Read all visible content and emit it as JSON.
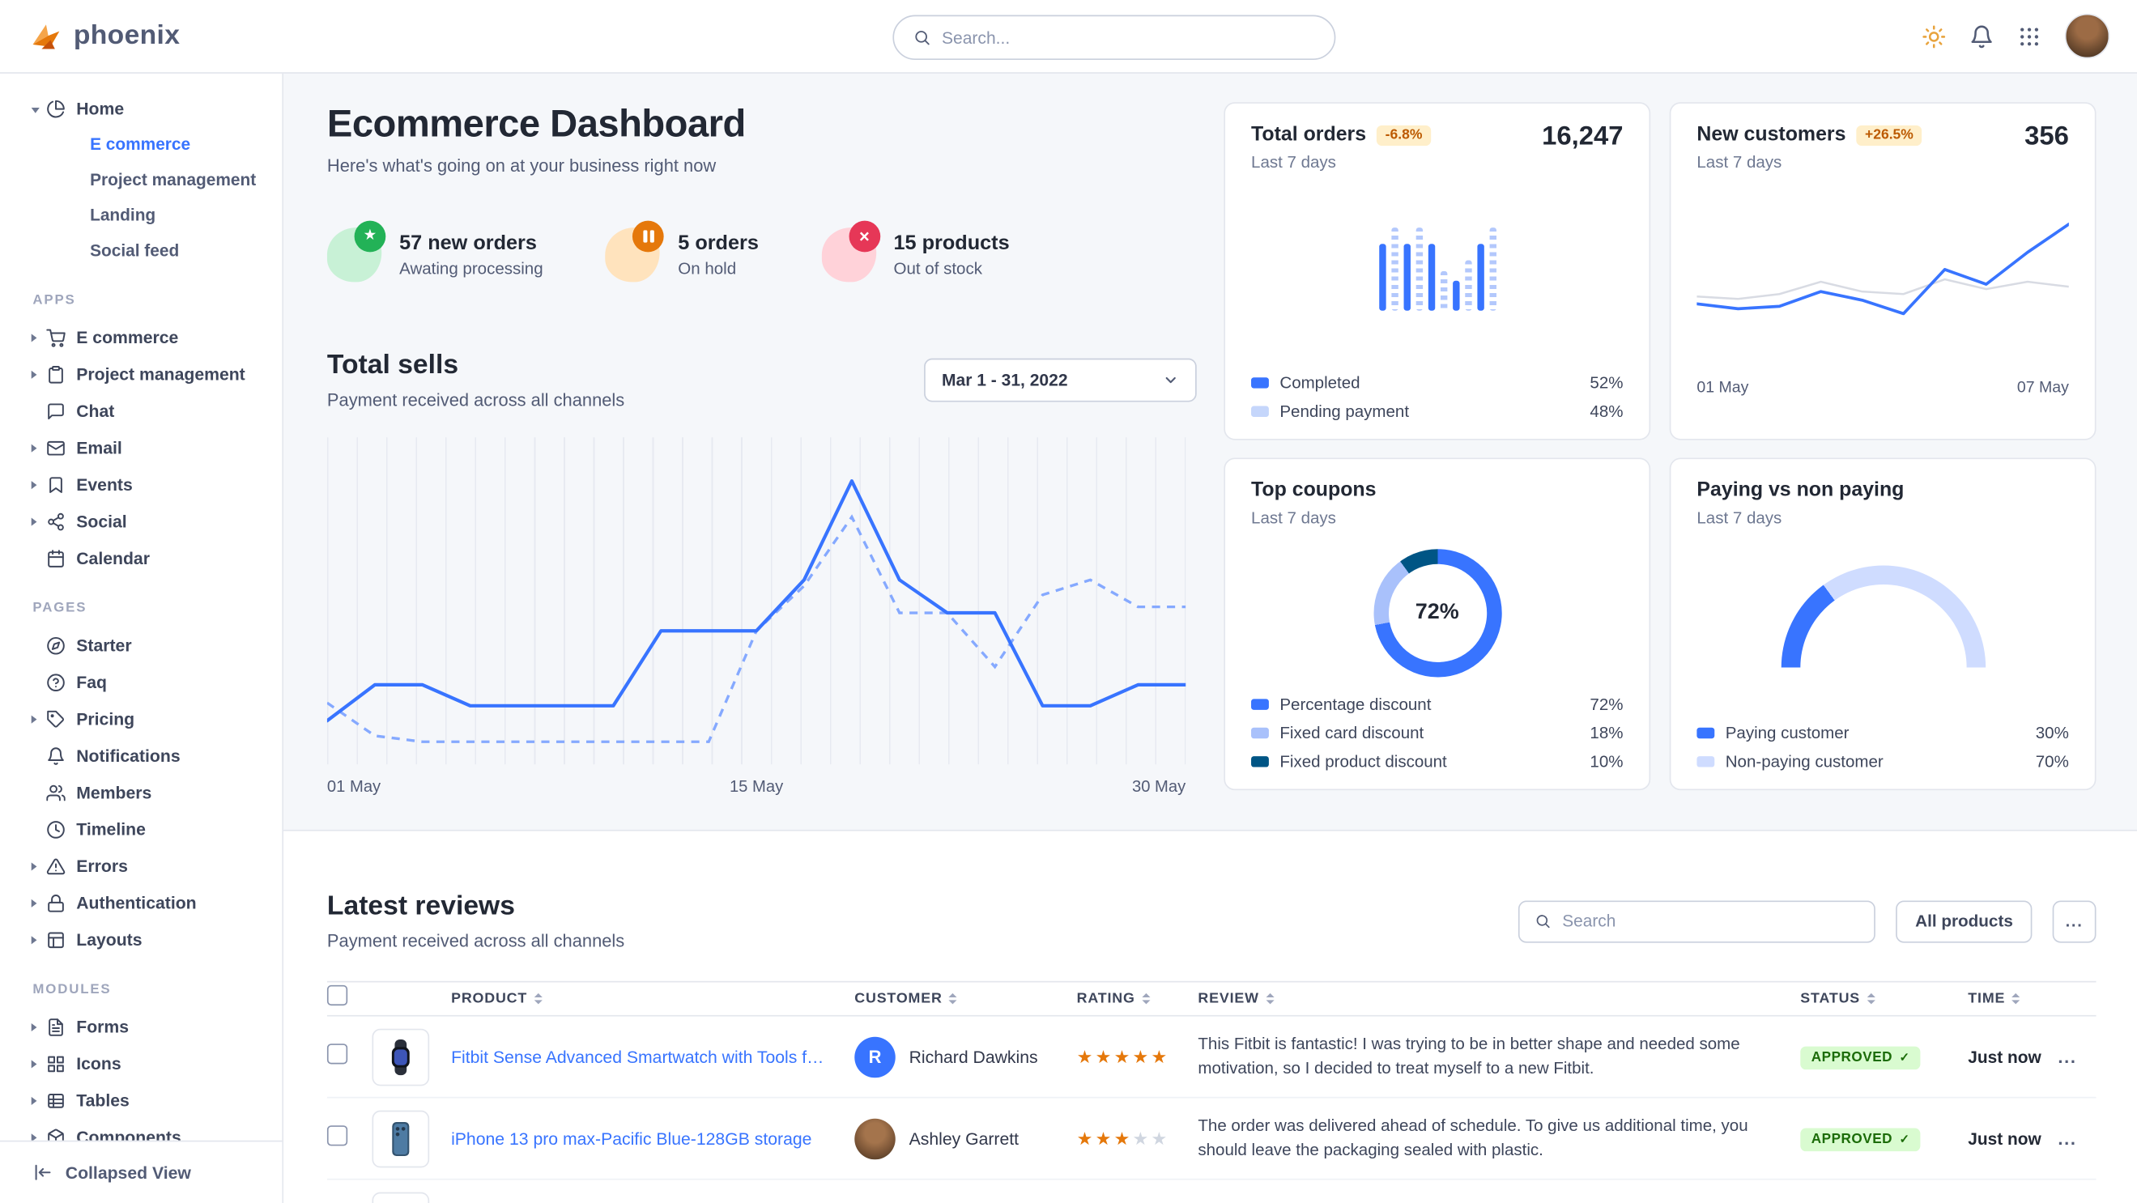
{
  "brand": {
    "name": "phoenix"
  },
  "navbar": {
    "search_placeholder": "Search..."
  },
  "colors": {
    "primary": "#3874ff",
    "primary_light": "#85a9ff",
    "pale_blue": "#c5d6fb",
    "dark_blue": "#005585",
    "gauge_track": "#cfdcff",
    "gray_line": "#d8dbe3",
    "warning_badge_bg": "#ffefca",
    "warning_badge_text": "#bc5a01",
    "success_badge_bg": "#d9fbd0",
    "success_badge_text": "#1c6c09",
    "star_orange": "#e5780b",
    "stat_green": "#23b257",
    "stat_green_light": "#c8f1d6",
    "stat_orange": "#e5780b",
    "stat_orange_light": "#ffe3bd",
    "stat_red": "#e63757",
    "stat_red_light": "#ffd2d9"
  },
  "sidebar": {
    "groups": [
      {
        "label": null,
        "items": [
          {
            "icon": "pie-chart",
            "label": "Home",
            "caret": "down",
            "children": [
              {
                "label": "E commerce",
                "active": true
              },
              {
                "label": "Project management"
              },
              {
                "label": "Landing"
              },
              {
                "label": "Social feed"
              }
            ]
          }
        ]
      },
      {
        "label": "APPS",
        "items": [
          {
            "icon": "cart",
            "label": "E commerce",
            "caret": "right"
          },
          {
            "icon": "clipboard",
            "label": "Project management",
            "caret": "right"
          },
          {
            "icon": "chat",
            "label": "Chat"
          },
          {
            "icon": "mail",
            "label": "Email",
            "caret": "right"
          },
          {
            "icon": "bookmark",
            "label": "Events",
            "caret": "right"
          },
          {
            "icon": "share",
            "label": "Social",
            "caret": "right"
          },
          {
            "icon": "calendar",
            "label": "Calendar"
          }
        ]
      },
      {
        "label": "PAGES",
        "items": [
          {
            "icon": "compass",
            "label": "Starter"
          },
          {
            "icon": "help",
            "label": "Faq"
          },
          {
            "icon": "tag",
            "label": "Pricing",
            "caret": "right"
          },
          {
            "icon": "bell",
            "label": "Notifications"
          },
          {
            "icon": "users",
            "label": "Members"
          },
          {
            "icon": "clock",
            "label": "Timeline"
          },
          {
            "icon": "alert",
            "label": "Errors",
            "caret": "right"
          },
          {
            "icon": "lock",
            "label": "Authentication",
            "caret": "right"
          },
          {
            "icon": "layout",
            "label": "Layouts",
            "caret": "right"
          }
        ]
      },
      {
        "label": "MODULES",
        "items": [
          {
            "icon": "form",
            "label": "Forms",
            "caret": "right"
          },
          {
            "icon": "grid",
            "label": "Icons",
            "caret": "right"
          },
          {
            "icon": "table",
            "label": "Tables",
            "caret": "right"
          },
          {
            "icon": "components",
            "label": "Components",
            "caret": "right"
          }
        ]
      }
    ],
    "footer": {
      "label": "Collapsed View"
    }
  },
  "page": {
    "title": "Ecommerce Dashboard",
    "subtitle": "Here's what's going on at your business right now"
  },
  "stats": [
    {
      "icon": "star",
      "color": "green",
      "value": "57 new orders",
      "label": "Awating processing"
    },
    {
      "icon": "pause",
      "color": "orange",
      "value": "5 orders",
      "label": "On hold"
    },
    {
      "icon": "x",
      "color": "red",
      "value": "15 products",
      "label": "Out of stock"
    }
  ],
  "total_sells": {
    "title": "Total sells",
    "subtitle": "Payment received across all channels",
    "date_range": "Mar 1 - 31, 2022",
    "x_labels": [
      "01 May",
      "15 May",
      "30 May"
    ],
    "chart": {
      "type": "line",
      "ylim": [
        0,
        100
      ],
      "series": [
        {
          "name": "current-period",
          "style": "solid",
          "values": [
            10,
            22,
            22,
            15,
            15,
            15,
            15,
            40,
            40,
            40,
            57,
            90,
            57,
            46,
            46,
            15,
            15,
            22,
            22
          ]
        },
        {
          "name": "previous-period",
          "style": "dashed",
          "values": [
            16,
            5,
            3,
            3,
            3,
            3,
            3,
            3,
            3,
            40,
            55,
            78,
            46,
            46,
            28,
            52,
            57,
            48,
            48
          ]
        }
      ]
    }
  },
  "cards": {
    "total_orders": {
      "title": "Total orders",
      "badge": "-6.8%",
      "period": "Last 7 days",
      "value": "16,247",
      "chart": {
        "type": "bar",
        "values": [
          68,
          85,
          68,
          85,
          68,
          40,
          30,
          52,
          68,
          85
        ]
      },
      "legend": [
        {
          "label": "Completed",
          "value": "52%",
          "color": "#3874ff"
        },
        {
          "label": "Pending payment",
          "value": "48%",
          "color": "#c5d6fb"
        }
      ]
    },
    "new_customers": {
      "title": "New customers",
      "badge": "+26.5%",
      "period": "Last 7 days",
      "value": "356",
      "x_labels": [
        "01 May",
        "07 May"
      ],
      "chart": {
        "type": "line",
        "series": [
          {
            "name": "baseline",
            "color": "#d8dbe3",
            "values": [
              36,
              34,
              38,
              48,
              40,
              38,
              50,
              42,
              48,
              44
            ]
          },
          {
            "name": "customers",
            "color": "#3874ff",
            "values": [
              30,
              26,
              28,
              40,
              33,
              22,
              58,
              46,
              72,
              95
            ]
          }
        ]
      }
    },
    "top_coupons": {
      "title": "Top coupons",
      "period": "Last 7 days",
      "center_label": "72%",
      "chart": {
        "type": "pie",
        "segments": [
          {
            "label": "Percentage discount",
            "pct": 72,
            "color": "#3874ff"
          },
          {
            "label": "Fixed card discount",
            "pct": 18,
            "color": "#a9c1fb"
          },
          {
            "label": "Fixed product discount",
            "pct": 10,
            "color": "#005585"
          }
        ]
      }
    },
    "paying": {
      "title": "Paying vs non paying",
      "period": "Last 7 days",
      "chart": {
        "type": "gauge",
        "segments": [
          {
            "label": "Paying customer",
            "pct": 30,
            "color": "#3874ff"
          },
          {
            "label": "Non-paying customer",
            "pct": 70,
            "color": "#cfdcff"
          }
        ]
      }
    }
  },
  "reviews": {
    "title": "Latest reviews",
    "subtitle": "Payment received across all channels",
    "search_placeholder": "Search",
    "filter_label": "All products",
    "more_label": "...",
    "columns": [
      "PRODUCT",
      "CUSTOMER",
      "RATING",
      "REVIEW",
      "STATUS",
      "TIME"
    ],
    "rows": [
      {
        "product": "Fitbit Sense Advanced Smartwatch with Tools fo...",
        "thumb": "watch",
        "customer": "Richard Dawkins",
        "avatar_type": "initial",
        "avatar_text": "R",
        "rating": 5,
        "review": "This Fitbit is fantastic! I was trying to be in better shape and needed some motivation, so I decided to treat myself to a new Fitbit.",
        "status": "APPROVED",
        "time": "Just now"
      },
      {
        "product": "iPhone 13 pro max-Pacific Blue-128GB storage",
        "thumb": "phone",
        "customer": "Ashley Garrett",
        "avatar_type": "photo",
        "avatar_text": "",
        "rating": 3,
        "review": "The order was delivered ahead of schedule. To give us additional time, you should leave the packaging sealed with plastic.",
        "status": "APPROVED",
        "time": "Just now"
      }
    ],
    "partial_next_row": true
  }
}
